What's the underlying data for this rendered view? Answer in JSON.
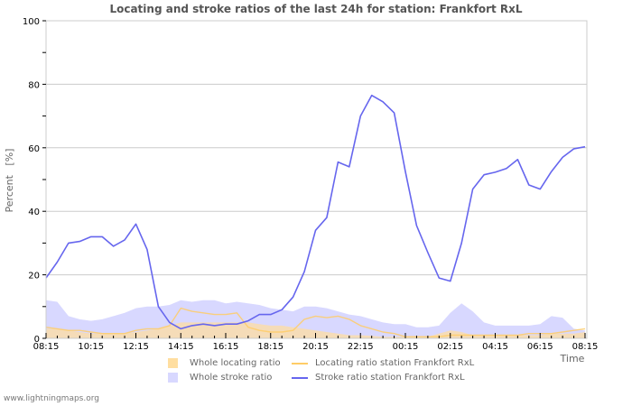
{
  "chart_data": {
    "type": "line",
    "title": "Locating and stroke ratios of the last 24h for station: Frankfort RxL",
    "xlabel": "Time",
    "ylabel": "Percent   [%]",
    "ylim": [
      0,
      100
    ],
    "yticks": [
      0,
      20,
      40,
      60,
      80,
      100
    ],
    "xtick_labels": [
      "08:15",
      "10:15",
      "12:15",
      "14:15",
      "16:15",
      "18:15",
      "20:15",
      "22:15",
      "00:15",
      "02:15",
      "04:15",
      "06:15",
      "08:15"
    ],
    "grid": true,
    "legend_position": "bottom",
    "x_step_minutes": 30,
    "x": [
      "08:15",
      "08:45",
      "09:15",
      "09:45",
      "10:15",
      "10:45",
      "11:15",
      "11:45",
      "12:15",
      "12:45",
      "13:15",
      "13:45",
      "14:15",
      "14:45",
      "15:15",
      "15:45",
      "16:15",
      "16:45",
      "17:15",
      "17:45",
      "18:15",
      "18:45",
      "19:15",
      "19:45",
      "20:15",
      "20:45",
      "21:15",
      "21:45",
      "22:15",
      "22:45",
      "23:15",
      "23:45",
      "00:15",
      "00:45",
      "01:15",
      "01:45",
      "02:15",
      "02:45",
      "03:15",
      "03:45",
      "04:15",
      "04:45",
      "05:15",
      "05:45",
      "06:15",
      "06:45",
      "07:15",
      "07:45",
      "08:15"
    ],
    "series": [
      {
        "name": "Whole locating ratio",
        "kind": "area",
        "color": "#ffdea0",
        "values": [
          3,
          3,
          2.5,
          2,
          1.5,
          1.5,
          1.5,
          1.5,
          2,
          2.5,
          3,
          4,
          5,
          5,
          5,
          5,
          5,
          5,
          5,
          4.5,
          4,
          4,
          3.5,
          3,
          2.5,
          2,
          1.5,
          1,
          1,
          0.8,
          0.5,
          0.5,
          0.5,
          0.5,
          0.5,
          1.5,
          2.5,
          2,
          1,
          1,
          1,
          1,
          1,
          1,
          1,
          1.5,
          1.5,
          1.5,
          2
        ]
      },
      {
        "name": "Whole stroke ratio",
        "kind": "area",
        "color": "#d8d8ff",
        "values": [
          12,
          11.5,
          7,
          6,
          5.5,
          6,
          7,
          8,
          9.5,
          10,
          10,
          10.5,
          12,
          11.5,
          12,
          12,
          11,
          11.5,
          11,
          10.5,
          9.5,
          9,
          8.5,
          10,
          10,
          9.5,
          8.5,
          7.5,
          7,
          6,
          5,
          4.5,
          4.5,
          3.5,
          3.5,
          4,
          8,
          11,
          8.5,
          5,
          4,
          4,
          4,
          4,
          4.5,
          7,
          6.5,
          3,
          2.5
        ]
      },
      {
        "name": "Locating ratio station Frankfort RxL",
        "kind": "line",
        "color": "#ffcc66",
        "values": [
          3.5,
          3,
          2.5,
          2.5,
          2,
          1.5,
          1.5,
          1.5,
          2.5,
          3,
          3,
          4,
          9.5,
          8.5,
          8,
          7.5,
          7.5,
          8,
          3.5,
          2.5,
          2,
          2,
          2.5,
          6,
          7,
          6.5,
          7,
          6,
          4,
          3,
          2,
          1.5,
          0.5,
          0.5,
          0.5,
          0.5,
          1,
          1,
          1,
          1,
          1,
          1,
          1,
          1.5,
          1.5,
          1.5,
          2,
          2.5,
          3
        ]
      },
      {
        "name": "Stroke ratio station Frankfort RxL",
        "kind": "line",
        "color": "#6666ee",
        "values": [
          19,
          24,
          30,
          30.5,
          32,
          32,
          29,
          31,
          36,
          28,
          10,
          5,
          3,
          4,
          4.5,
          4,
          4.5,
          4.5,
          5.5,
          7.5,
          7.5,
          9,
          13,
          21,
          34,
          38,
          55.5,
          54,
          70,
          76.5,
          74.5,
          71,
          52.5,
          35.5,
          27,
          19,
          18,
          30,
          47,
          51.5,
          52.3,
          53.5,
          56.3,
          48.3,
          47,
          52.5,
          57,
          59.7,
          60.3
        ]
      }
    ]
  },
  "legend": {
    "items": [
      {
        "label": "Whole locating ratio",
        "kind": "swatch",
        "color": "#ffdea0"
      },
      {
        "label": "Locating ratio station Frankfort RxL",
        "kind": "line",
        "color": "#ffcc66"
      },
      {
        "label": "Whole stroke ratio",
        "kind": "swatch",
        "color": "#d8d8ff"
      },
      {
        "label": "Stroke ratio station Frankfort RxL",
        "kind": "line",
        "color": "#6666ee"
      }
    ]
  },
  "footer": {
    "text": "www.lightningmaps.org"
  }
}
